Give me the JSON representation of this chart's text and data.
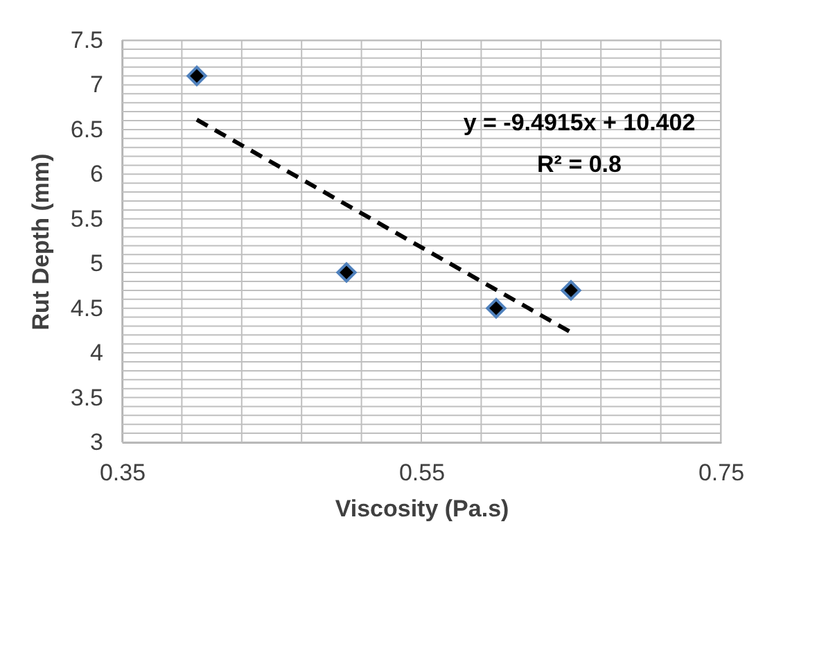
{
  "chart_data": {
    "type": "scatter",
    "xlabel": "Viscosity (Pa.s)",
    "ylabel": "Rut Depth (mm)",
    "annotations": [
      "y = -9.4915x + 10.402",
      "R² = 0.8"
    ],
    "xlim": [
      0.35,
      0.75
    ],
    "xticks": [
      0.35,
      {
        "value": 0.39,
        "label": null
      },
      {
        "value": 0.43,
        "label": null
      },
      {
        "value": 0.47,
        "label": null
      },
      {
        "value": 0.51,
        "label": null
      },
      0.55,
      {
        "value": 0.59,
        "label": null
      },
      {
        "value": 0.63,
        "label": null
      },
      {
        "value": 0.67,
        "label": null
      },
      {
        "value": 0.71,
        "label": null
      },
      0.75
    ],
    "ylim": [
      3,
      7.5
    ],
    "yticks": [
      3,
      {
        "value": 3.1,
        "label": null
      },
      {
        "value": 3.2,
        "label": null
      },
      {
        "value": 3.3,
        "label": null
      },
      {
        "value": 3.4,
        "label": null
      },
      3.5,
      {
        "value": 3.6,
        "label": null
      },
      {
        "value": 3.7,
        "label": null
      },
      {
        "value": 3.8,
        "label": null
      },
      {
        "value": 3.9,
        "label": null
      },
      4,
      {
        "value": 4.1,
        "label": null
      },
      {
        "value": 4.2,
        "label": null
      },
      {
        "value": 4.3,
        "label": null
      },
      {
        "value": 4.4,
        "label": null
      },
      4.5,
      {
        "value": 4.6,
        "label": null
      },
      {
        "value": 4.7,
        "label": null
      },
      {
        "value": 4.8,
        "label": null
      },
      {
        "value": 4.9,
        "label": null
      },
      5,
      {
        "value": 5.1,
        "label": null
      },
      {
        "value": 5.2,
        "label": null
      },
      {
        "value": 5.3,
        "label": null
      },
      {
        "value": 5.4,
        "label": null
      },
      5.5,
      {
        "value": 5.6,
        "label": null
      },
      {
        "value": 5.7,
        "label": null
      },
      {
        "value": 5.8,
        "label": null
      },
      {
        "value": 5.9,
        "label": null
      },
      6,
      {
        "value": 6.1,
        "label": null
      },
      {
        "value": 6.2,
        "label": null
      },
      {
        "value": 6.3,
        "label": null
      },
      {
        "value": 6.4,
        "label": null
      },
      6.5,
      {
        "value": 6.6,
        "label": null
      },
      {
        "value": 6.7,
        "label": null
      },
      {
        "value": 6.8,
        "label": null
      },
      {
        "value": 6.9,
        "label": null
      },
      7,
      {
        "value": 7.1,
        "label": null
      },
      {
        "value": 7.2,
        "label": null
      },
      {
        "value": 7.3,
        "label": null
      },
      {
        "value": 7.4,
        "label": null
      },
      7.5
    ],
    "grid": true,
    "marker": "diamond",
    "series": [
      {
        "color": "#000000",
        "x": [
          0.4,
          0.5,
          0.6,
          0.65
        ],
        "values": [
          7.1,
          4.9,
          4.5,
          4.7
        ]
      },
      {
        "type": "line",
        "color": "#000000",
        "line_style": "dashed",
        "marker": "none",
        "x": [
          0.4,
          0.65
        ],
        "values": [
          6.61,
          4.23
        ]
      }
    ]
  }
}
